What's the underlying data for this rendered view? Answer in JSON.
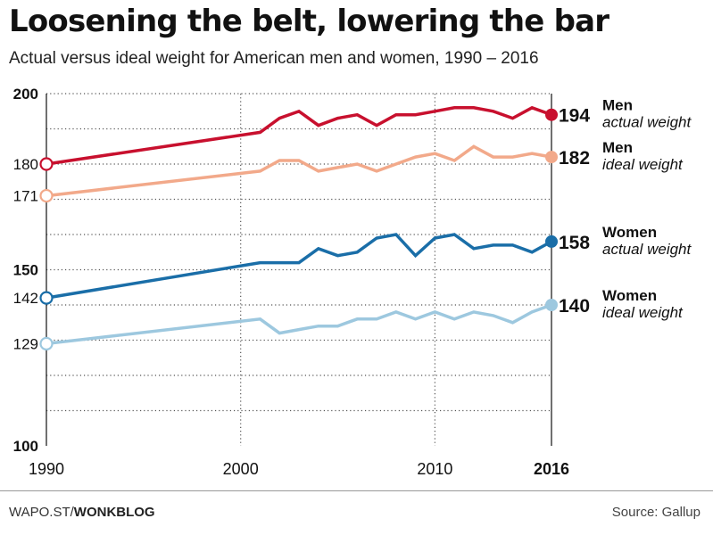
{
  "title": "Loosening the belt, lowering the bar",
  "subtitle": "Actual versus ideal weight for American men and women, 1990 – 2016",
  "footer": {
    "credit_prefix": "WAPO.ST/",
    "credit_bold": "WONKBLOG",
    "source": "Source: Gallup"
  },
  "chart_data": {
    "type": "line",
    "title": "Loosening the belt, lowering the bar",
    "subtitle": "Actual versus ideal weight for American men and women, 1990 – 2016",
    "xlabel": "",
    "ylabel": "",
    "xlim": [
      1990,
      2016
    ],
    "ylim": [
      100,
      200
    ],
    "x_ticks": [
      {
        "value": 1990,
        "label": "1990",
        "bold": false
      },
      {
        "value": 2000,
        "label": "2000",
        "bold": false
      },
      {
        "value": 2010,
        "label": "2010",
        "bold": false
      },
      {
        "value": 2016,
        "label": "2016",
        "bold": true
      }
    ],
    "y_ticks": [
      {
        "value": 200,
        "label": "200",
        "bold": true
      },
      {
        "value": 180,
        "label": "180",
        "bold": false
      },
      {
        "value": 171,
        "label": "171",
        "bold": false
      },
      {
        "value": 150,
        "label": "150",
        "bold": true
      },
      {
        "value": 142,
        "label": "142",
        "bold": false
      },
      {
        "value": 129,
        "label": "129",
        "bold": false
      },
      {
        "value": 100,
        "label": "100",
        "bold": true
      }
    ],
    "grid": true,
    "series": [
      {
        "name": "Men actual weight",
        "label_line1": "Men",
        "label_line2": "actual weight",
        "end_label": "194",
        "color": "#c8102e",
        "x": [
          1990,
          2001,
          2002,
          2003,
          2004,
          2005,
          2006,
          2007,
          2008,
          2009,
          2010,
          2011,
          2012,
          2013,
          2014,
          2015,
          2016
        ],
        "y": [
          180,
          189,
          193,
          195,
          191,
          193,
          194,
          191,
          194,
          194,
          195,
          196,
          196,
          195,
          193,
          196,
          194
        ]
      },
      {
        "name": "Men ideal weight",
        "label_line1": "Men",
        "label_line2": "ideal weight",
        "end_label": "182",
        "color": "#f2a98a",
        "x": [
          1990,
          2001,
          2002,
          2003,
          2004,
          2005,
          2006,
          2007,
          2008,
          2009,
          2010,
          2011,
          2012,
          2013,
          2014,
          2015,
          2016
        ],
        "y": [
          171,
          178,
          181,
          181,
          178,
          179,
          180,
          178,
          180,
          182,
          183,
          181,
          185,
          182,
          182,
          183,
          182
        ]
      },
      {
        "name": "Women actual weight",
        "label_line1": "Women",
        "label_line2": "actual weight",
        "end_label": "158",
        "color": "#1a6ea8",
        "x": [
          1990,
          2001,
          2002,
          2003,
          2004,
          2005,
          2006,
          2007,
          2008,
          2009,
          2010,
          2011,
          2012,
          2013,
          2014,
          2015,
          2016
        ],
        "y": [
          142,
          152,
          152,
          152,
          156,
          154,
          155,
          159,
          160,
          154,
          159,
          160,
          156,
          157,
          157,
          155,
          158
        ]
      },
      {
        "name": "Women ideal weight",
        "label_line1": "Women",
        "label_line2": "ideal weight",
        "end_label": "140",
        "color": "#9dc8df",
        "x": [
          1990,
          2001,
          2002,
          2003,
          2004,
          2005,
          2006,
          2007,
          2008,
          2009,
          2010,
          2011,
          2012,
          2013,
          2014,
          2015,
          2016
        ],
        "y": [
          129,
          136,
          132,
          133,
          134,
          134,
          136,
          136,
          138,
          136,
          138,
          136,
          138,
          137,
          135,
          138,
          140
        ]
      }
    ]
  }
}
